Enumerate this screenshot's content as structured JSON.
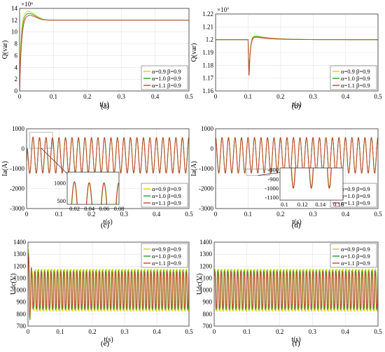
{
  "figure": {
    "legend_labels": [
      "α=0.9 β=0.9",
      "α=1.0 β=0.9",
      "α=1.1 β=0.9"
    ],
    "series_colors": [
      "#d8d100",
      "#1aa31a",
      "#d63a3a"
    ]
  },
  "chart_data": [
    {
      "panel": "a",
      "caption": "(a)",
      "type": "line",
      "xlabel": "t(s)",
      "ylabel": "Q(var)",
      "exponent": "×10⁶",
      "xlim": [
        0,
        0.5
      ],
      "ylim": [
        0,
        14
      ],
      "xticks": [
        "0",
        "0.1",
        "0.2",
        "0.3",
        "0.4",
        "0.5"
      ],
      "yticks": [
        "0",
        "2",
        "4",
        "6",
        "8",
        "10",
        "12",
        "14"
      ],
      "legend_position": "bottom-right",
      "series": [
        {
          "name": "α=0.9 β=0.9",
          "peak": 13.5,
          "steady": 12.0
        },
        {
          "name": "α=1.0 β=0.9",
          "peak": 13.2,
          "steady": 12.0
        },
        {
          "name": "α=1.1 β=0.9",
          "peak": 12.9,
          "steady": 12.0
        }
      ]
    },
    {
      "panel": "b",
      "caption": "(b)",
      "type": "line",
      "xlabel": "t(s)",
      "ylabel": "Q(var)",
      "exponent": "×10⁷",
      "xlim": [
        0,
        0.5
      ],
      "ylim": [
        1.16,
        1.22
      ],
      "xticks": [
        "0",
        "0.1",
        "0.2",
        "0.3",
        "0.4",
        "0.5"
      ],
      "yticks": [
        "1.16",
        "1.17",
        "1.18",
        "1.19",
        "1.2",
        "1.21",
        "1.22"
      ],
      "legend_position": "bottom-right",
      "series": [
        {
          "name": "α=0.9 β=0.9",
          "steady": 1.2,
          "dip": 1.17,
          "overshoot": 1.205,
          "event_time": 0.1
        },
        {
          "name": "α=1.0 β=0.9",
          "steady": 1.2,
          "dip": 1.17,
          "overshoot": 1.204,
          "event_time": 0.1
        },
        {
          "name": "α=1.1 β=0.9",
          "steady": 1.2,
          "dip": 1.17,
          "overshoot": 1.203,
          "event_time": 0.1
        }
      ]
    },
    {
      "panel": "c",
      "caption": "(c)",
      "type": "line",
      "xlabel": "t(s)",
      "ylabel": "Ia(A)",
      "xlim": [
        0,
        0.5
      ],
      "ylim": [
        -3000,
        1500
      ],
      "xticks": [
        "0",
        "0.1",
        "0.2",
        "0.3",
        "0.4",
        "0.5"
      ],
      "yticks": [
        "-3000",
        "-2000",
        "-1000",
        "0",
        "1000"
      ],
      "legend_position": "bottom-right",
      "frequency_hz": 50,
      "amplitude": 1000,
      "start_peak": 1350,
      "start_dip": -2700,
      "inset": {
        "xlim": [
          0.01,
          0.08
        ],
        "ylim": [
          400,
          1300
        ],
        "xticks": [
          "0.02",
          "0.04",
          "0.06",
          "0.08"
        ],
        "yticks": [
          "500",
          "1000"
        ]
      },
      "series": [
        {
          "name": "α=0.9 β=0.9"
        },
        {
          "name": "α=1.0 β=0.9"
        },
        {
          "name": "α=1.1 β=0.9"
        }
      ]
    },
    {
      "panel": "d",
      "caption": "(d)",
      "type": "line",
      "xlabel": "t(s)",
      "ylabel": "Ia(A)",
      "xlim": [
        0,
        0.5
      ],
      "ylim": [
        -3000,
        1500
      ],
      "xticks": [
        "0",
        "0.1",
        "0.2",
        "0.3",
        "0.4",
        "0.5"
      ],
      "yticks": [
        "-3000",
        "-2000",
        "-1000",
        "0",
        "1000"
      ],
      "legend_position": "bottom-right",
      "frequency_hz": 50,
      "amplitude": 1000,
      "inset": {
        "xlim": [
          0.095,
          0.165
        ],
        "ylim": [
          -1130,
          -780
        ],
        "xticks": [
          "0.1",
          "0.12",
          "0.14",
          "0.16"
        ],
        "yticks": [
          "-800",
          "-900",
          "-1000",
          "-1100"
        ]
      },
      "series": [
        {
          "name": "α=0.9 β=0.9"
        },
        {
          "name": "α=1.0 β=0.9"
        },
        {
          "name": "α=1.1 β=0.9"
        }
      ]
    },
    {
      "panel": "e",
      "caption": "(e)",
      "type": "line",
      "xlabel": "t(s)",
      "ylabel": "Udc(V)",
      "xlim": [
        0,
        0.5
      ],
      "ylim": [
        700,
        1400
      ],
      "xticks": [
        "0",
        "0.1",
        "0.2",
        "0.3",
        "0.4",
        "0.5"
      ],
      "yticks": [
        "700",
        "800",
        "900",
        "1000",
        "1100",
        "1200",
        "1300",
        "1400"
      ],
      "legend_position": "top-right",
      "center": 1000,
      "ripple_amplitudes": [
        200,
        180,
        160
      ],
      "ripple_frequency_hz": 100,
      "series": [
        {
          "name": "α=0.9 β=0.9"
        },
        {
          "name": "α=1.0 β=0.9"
        },
        {
          "name": "α=1.1 β=0.9"
        }
      ]
    },
    {
      "panel": "f",
      "caption": "(f)",
      "type": "line",
      "xlabel": "t(s)",
      "ylabel": "Udc(V)",
      "xlim": [
        0,
        0.5
      ],
      "ylim": [
        700,
        1400
      ],
      "xticks": [
        "0",
        "0.1",
        "0.2",
        "0.3",
        "0.4",
        "0.5"
      ],
      "yticks": [
        "700",
        "800",
        "900",
        "1000",
        "1100",
        "1200",
        "1300",
        "1400"
      ],
      "legend_position": "top-right",
      "center": 1000,
      "ripple_amplitudes": [
        200,
        180,
        160
      ],
      "ripple_frequency_hz": 100,
      "series": [
        {
          "name": "α=0.9 β=0.9"
        },
        {
          "name": "α=1.0 β=0.9"
        },
        {
          "name": "α=1.1 β=0.9"
        }
      ]
    }
  ]
}
